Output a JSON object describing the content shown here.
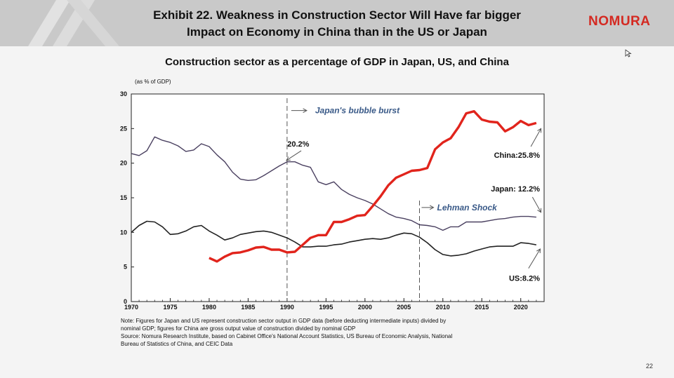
{
  "header": {
    "title_line1": "Exhibit 22. Weakness in Construction Sector Will Have far bigger",
    "title_line2": "Impact on Economy in China than in the US or Japan",
    "logo_text": "NOMURA",
    "logo_color": "#d42a22"
  },
  "page_number": "22",
  "chart_data": {
    "type": "line",
    "title": "Construction sector as a percentage of GDP in Japan, US, and China",
    "ylabel": "(as % of GDP)",
    "xlim": [
      1970,
      2023
    ],
    "ylim": [
      0,
      30
    ],
    "x_ticks": [
      "1970",
      "1975",
      "1980",
      "1985",
      "1990",
      "1995",
      "2000",
      "2005",
      "2010",
      "2015",
      "2020"
    ],
    "y_ticks": [
      "0",
      "5",
      "10",
      "15",
      "20",
      "25",
      "30"
    ],
    "grid": false,
    "series": [
      {
        "name": "Japan",
        "color": "#4a4060",
        "x": [
          1970,
          1971,
          1972,
          1973,
          1974,
          1975,
          1976,
          1977,
          1978,
          1979,
          1980,
          1981,
          1982,
          1983,
          1984,
          1985,
          1986,
          1987,
          1988,
          1989,
          1990,
          1991,
          1992,
          1993,
          1994,
          1995,
          1996,
          1997,
          1998,
          1999,
          2000,
          2001,
          2002,
          2003,
          2004,
          2005,
          2006,
          2007,
          2008,
          2009,
          2010,
          2011,
          2012,
          2013,
          2014,
          2015,
          2016,
          2017,
          2018,
          2019,
          2020,
          2021,
          2022
        ],
        "values": [
          21.4,
          21.1,
          21.8,
          23.8,
          23.3,
          23.0,
          22.5,
          21.7,
          21.9,
          22.8,
          22.4,
          21.2,
          20.2,
          18.7,
          17.7,
          17.5,
          17.6,
          18.2,
          18.9,
          19.6,
          20.2,
          20.2,
          19.7,
          19.4,
          17.3,
          16.9,
          17.3,
          16.2,
          15.5,
          15.0,
          14.6,
          14.1,
          13.4,
          12.7,
          12.2,
          12.0,
          11.7,
          11.1,
          11.0,
          10.8,
          10.3,
          10.8,
          10.8,
          11.5,
          11.5,
          11.5,
          11.7,
          11.9,
          12.0,
          12.2,
          12.3,
          12.3,
          12.2
        ]
      },
      {
        "name": "US",
        "color": "#222222",
        "x": [
          1970,
          1971,
          1972,
          1973,
          1974,
          1975,
          1976,
          1977,
          1978,
          1979,
          1980,
          1981,
          1982,
          1983,
          1984,
          1985,
          1986,
          1987,
          1988,
          1989,
          1990,
          1991,
          1992,
          1993,
          1994,
          1995,
          1996,
          1997,
          1998,
          1999,
          2000,
          2001,
          2002,
          2003,
          2004,
          2005,
          2006,
          2007,
          2008,
          2009,
          2010,
          2011,
          2012,
          2013,
          2014,
          2015,
          2016,
          2017,
          2018,
          2019,
          2020,
          2021,
          2022
        ],
        "values": [
          10.0,
          11.0,
          11.6,
          11.5,
          10.8,
          9.7,
          9.8,
          10.2,
          10.8,
          11.0,
          10.2,
          9.6,
          8.9,
          9.2,
          9.7,
          9.9,
          10.1,
          10.2,
          10.0,
          9.6,
          9.2,
          8.6,
          7.9,
          7.9,
          8.0,
          8.0,
          8.2,
          8.3,
          8.6,
          8.8,
          9.0,
          9.1,
          9.0,
          9.2,
          9.6,
          9.9,
          9.8,
          9.3,
          8.5,
          7.5,
          6.8,
          6.6,
          6.7,
          6.9,
          7.3,
          7.6,
          7.9,
          8.0,
          8.0,
          8.0,
          8.5,
          8.4,
          8.2
        ]
      },
      {
        "name": "China",
        "color": "#e1241c",
        "x": [
          1980,
          1981,
          1982,
          1983,
          1984,
          1985,
          1986,
          1987,
          1988,
          1989,
          1990,
          1991,
          1992,
          1993,
          1994,
          1995,
          1996,
          1997,
          1998,
          1999,
          2000,
          2001,
          2002,
          2003,
          2004,
          2005,
          2006,
          2007,
          2008,
          2009,
          2010,
          2011,
          2012,
          2013,
          2014,
          2015,
          2016,
          2017,
          2018,
          2019,
          2020,
          2021,
          2022
        ],
        "values": [
          6.3,
          5.8,
          6.5,
          7.0,
          7.1,
          7.4,
          7.8,
          7.9,
          7.5,
          7.5,
          7.1,
          7.2,
          8.2,
          9.2,
          9.6,
          9.6,
          11.5,
          11.5,
          11.9,
          12.4,
          12.5,
          13.8,
          15.2,
          16.8,
          17.9,
          18.4,
          18.9,
          19.0,
          19.3,
          22.0,
          23.0,
          23.6,
          25.2,
          27.2,
          27.5,
          26.3,
          26.0,
          25.9,
          24.6,
          25.2,
          26.1,
          25.5,
          25.8
        ]
      }
    ],
    "annotations": {
      "bubble": "Japan's bubble burst",
      "bubble_year": 1990,
      "lehman": "Lehman Shock",
      "lehman_year": 2007,
      "japan_peak": "20.2%",
      "china_end": "China:25.8%",
      "japan_end": "Japan: 12.2%",
      "us_end": "US:8.2%"
    }
  },
  "notes": {
    "line1": "Note: Figures for Japan and US represent construction sector output in GDP data (before deducting intermediate inputs) divided by",
    "line2": "nominal GDP; figures for China are gross output value of construction divided by nominal GDP",
    "line3": "Source: Nomura Research Institute, based on Cabinet Office's National Account Statistics, US Bureau of Economic Analysis, National",
    "line4": "Bureau of Statistics of China, and CEIC Data"
  }
}
